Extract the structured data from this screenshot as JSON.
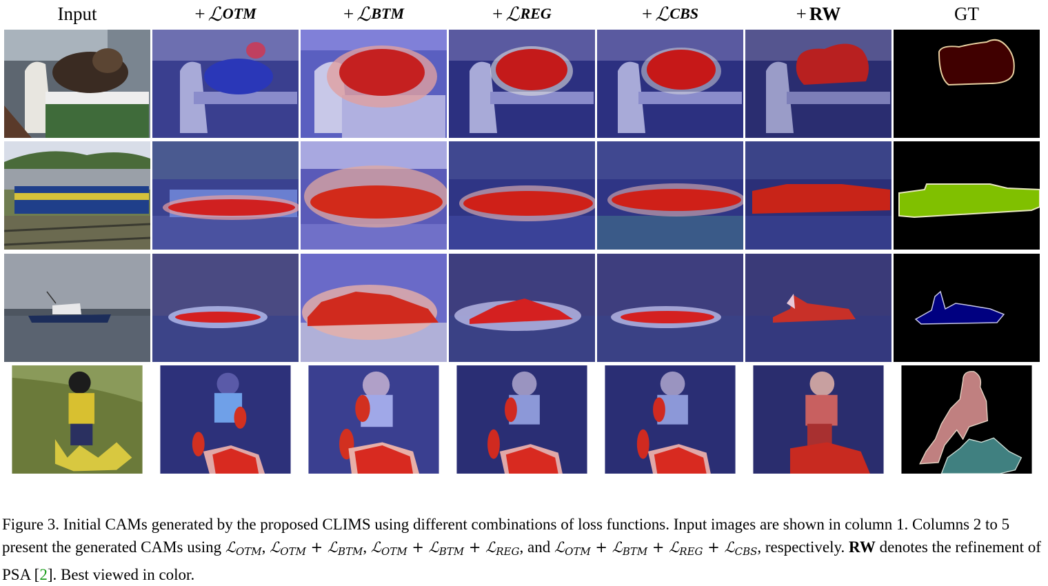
{
  "figure": {
    "headers": {
      "input": "Input",
      "otm": {
        "prefix": "+",
        "symbol": "ℒ",
        "sub": "OTM"
      },
      "btm": {
        "prefix": "+",
        "symbol": "ℒ",
        "sub": "BTM"
      },
      "reg": {
        "prefix": "+",
        "symbol": "ℒ",
        "sub": "REG"
      },
      "cbs": {
        "prefix": "+",
        "symbol": "ℒ",
        "sub": "CBS"
      },
      "rw": {
        "prefix": "+",
        "label": "RW"
      },
      "gt": "GT"
    },
    "rows": [
      "cat",
      "train",
      "boat",
      "person-motorbike"
    ],
    "gt_colors": {
      "cat": "#400000",
      "train": "#80c000",
      "boat": "#000080",
      "person": "#c08080",
      "motorbike": "#408080",
      "background": "#000000"
    },
    "heatmap_colors": {
      "low": "#2a2f8f",
      "high": "#d01010"
    }
  },
  "caption": {
    "part1": "Figure 3.  Initial CAMs generated by the proposed CLIMS using different combinations of loss functions.  Input images are shown in column 1. Columns 2 to 5 present the generated CAMs using ",
    "m1": "ℒ",
    "m1sub": "OTM",
    "sep1": ", ",
    "m2": "ℒ",
    "m2sub": "OTM",
    "m2plus": " + ℒ",
    "m2sub2": "BTM",
    "sep2": ", ",
    "m3": "ℒ",
    "m3sub": "OTM",
    "m3plus": " + ℒ",
    "m3sub2": "BTM",
    "m3plus2": " + ℒ",
    "m3sub3": "REG",
    "sep3": ", and ",
    "m4": "ℒ",
    "m4sub": "OTM",
    "m4plus": " + ℒ",
    "m4sub2": "BTM",
    "m4plus2": " + ℒ",
    "m4sub3": "REG",
    "m4plus3": " + ℒ",
    "m4sub4": "CBS",
    "part2": ", respectively. ",
    "rw": "RW",
    "part3": " denotes the refinement of PSA [",
    "cite": "2",
    "part4": "]. Best viewed in color."
  }
}
